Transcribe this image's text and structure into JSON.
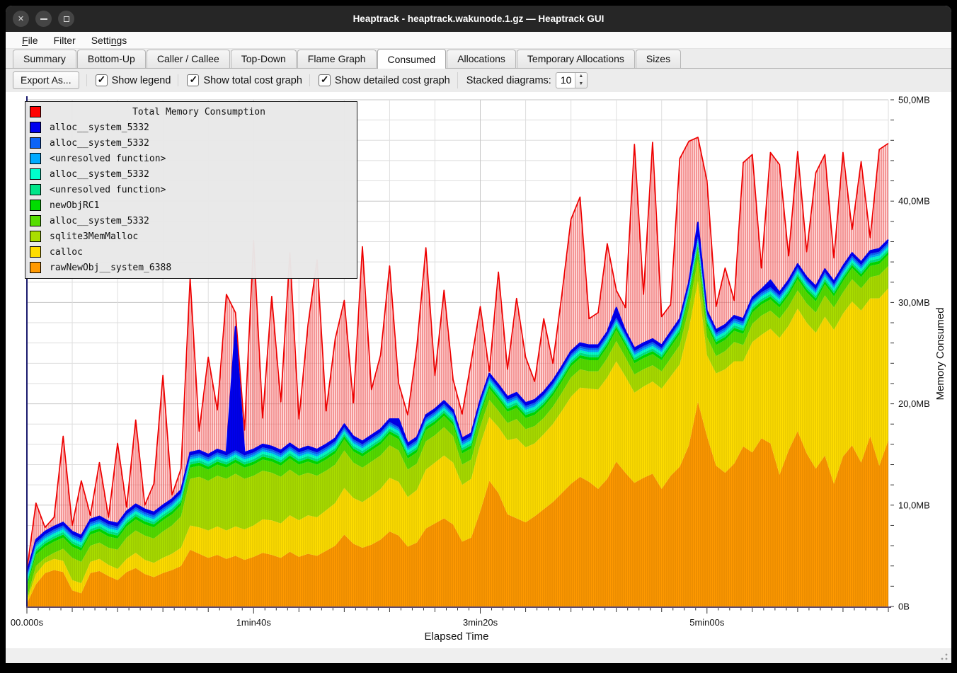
{
  "window": {
    "title": "Heaptrack - heaptrack.wakunode.1.gz — Heaptrack GUI",
    "controls": [
      "close",
      "minimize",
      "maximize"
    ]
  },
  "menu": {
    "items": [
      {
        "label": "File",
        "underline": 0
      },
      {
        "label": "Filter",
        "underline": -1
      },
      {
        "label": "Settings",
        "underline": 5
      }
    ]
  },
  "tabs": {
    "active_index": 5,
    "items": [
      "Summary",
      "Bottom-Up",
      "Caller / Callee",
      "Top-Down",
      "Flame Graph",
      "Consumed",
      "Allocations",
      "Temporary Allocations",
      "Sizes"
    ]
  },
  "toolbar": {
    "export_label": "Export As...",
    "checkboxes": [
      {
        "label": "Show legend",
        "checked": true
      },
      {
        "label": "Show total cost graph",
        "checked": true
      },
      {
        "label": "Show detailed cost graph",
        "checked": true
      }
    ],
    "stacked_label": "Stacked diagrams:",
    "stacked_value": "10"
  },
  "chart_data": {
    "type": "area",
    "stacking": "bottom-to-top",
    "xlabel": "Elapsed Time",
    "ylabel": "Memory Consumed",
    "xlim": [
      0,
      380
    ],
    "ylim": [
      0,
      50
    ],
    "grid": {
      "x_step_s": 20,
      "y_step_mb": 2,
      "visible": true
    },
    "x_start": 0,
    "x_step": 4,
    "x_ticks": [
      {
        "t": 0,
        "label": "00.000s"
      },
      {
        "t": 100,
        "label": "1min40s"
      },
      {
        "t": 200,
        "label": "3min20s"
      },
      {
        "t": 300,
        "label": "5min00s"
      }
    ],
    "y_ticks": [
      {
        "v": 0,
        "label": "0B"
      },
      {
        "v": 10,
        "label": "10,0MB"
      },
      {
        "v": 20,
        "label": "20,0MB"
      },
      {
        "v": 30,
        "label": "30,0MB"
      },
      {
        "v": 40,
        "label": "40,0MB"
      },
      {
        "v": 50,
        "label": "50,0MB"
      }
    ],
    "total": {
      "name": "Total Memory Consumption",
      "color": "#ff0000",
      "values": [
        3.6,
        10.2,
        7.8,
        8.8,
        16.8,
        8.0,
        12.4,
        9.0,
        14.2,
        8.8,
        16.1,
        9.8,
        18.4,
        10.0,
        12.1,
        22.8,
        11.0,
        13.6,
        32.4,
        17.3,
        24.6,
        19.4,
        30.8,
        29.0,
        17.4,
        36.1,
        18.6,
        30.6,
        20.2,
        34.9,
        18.5,
        27.8,
        34.2,
        19.3,
        26.4,
        30.2,
        20.1,
        35.5,
        21.4,
        24.8,
        33.6,
        22.0,
        18.9,
        25.6,
        35.4,
        22.8,
        31.2,
        22.4,
        19.0,
        24.2,
        29.6,
        23.2,
        33.0,
        23.4,
        30.4,
        24.6,
        22.2,
        28.4,
        24.0,
        30.8,
        38.2,
        40.4,
        28.4,
        29.0,
        35.8,
        31.2,
        29.5,
        45.6,
        30.8,
        45.8,
        28.6,
        29.8,
        44.2,
        45.9,
        46.3,
        42.0,
        29.6,
        33.4,
        30.2,
        43.8,
        44.6,
        33.4,
        44.8,
        43.6,
        34.6,
        44.9,
        35.0,
        42.8,
        44.6,
        34.4,
        44.8,
        37.2,
        43.9,
        36.4,
        45.1,
        45.7
      ]
    },
    "series": [
      {
        "name": "rawNewObj__system_6388",
        "color": "#ff9900",
        "values": [
          0.3,
          2.2,
          3.3,
          3.6,
          3.4,
          1.6,
          1.3,
          3.3,
          3.5,
          3.0,
          2.6,
          3.4,
          3.8,
          3.2,
          2.9,
          3.3,
          3.6,
          4.0,
          5.6,
          5.2,
          4.8,
          5.1,
          4.7,
          5.0,
          4.6,
          4.9,
          5.3,
          5.1,
          4.8,
          5.4,
          4.9,
          5.2,
          5.0,
          5.5,
          6.0,
          7.1,
          6.2,
          5.8,
          6.1,
          6.6,
          7.4,
          7.0,
          5.9,
          6.3,
          7.7,
          8.2,
          8.7,
          8.1,
          6.4,
          6.8,
          9.4,
          12.4,
          11.2,
          9.1,
          8.7,
          8.3,
          8.9,
          9.6,
          10.3,
          11.2,
          12.1,
          12.8,
          12.3,
          11.6,
          12.6,
          14.3,
          13.2,
          12.2,
          12.7,
          13.1,
          11.6,
          12.9,
          13.8,
          15.9,
          20.2,
          16.8,
          13.9,
          13.2,
          14.1,
          15.8,
          15.2,
          16.6,
          16.1,
          13.0,
          15.4,
          17.3,
          15.1,
          13.6,
          14.9,
          12.1,
          14.8,
          15.9,
          14.2,
          16.8,
          13.9,
          16.4
        ]
      },
      {
        "name": "calloc",
        "color": "#ffdd00",
        "values": [
          0.3,
          1.0,
          1.0,
          1.1,
          1.1,
          1.0,
          1.0,
          1.1,
          1.2,
          1.1,
          1.1,
          1.3,
          1.5,
          1.4,
          1.4,
          1.5,
          1.6,
          1.8,
          2.4,
          2.6,
          2.7,
          2.8,
          2.8,
          2.9,
          3.0,
          3.1,
          3.3,
          3.4,
          3.4,
          3.6,
          3.6,
          3.8,
          3.8,
          4.0,
          4.2,
          4.6,
          4.5,
          4.5,
          4.8,
          5.0,
          5.3,
          5.3,
          4.9,
          5.2,
          5.8,
          6.0,
          6.2,
          6.1,
          5.6,
          5.8,
          6.6,
          6.3,
          6.5,
          7.3,
          7.9,
          7.4,
          7.2,
          7.4,
          7.7,
          8.1,
          8.6,
          8.8,
          9.2,
          9.8,
          10.0,
          9.9,
          9.5,
          8.9,
          9.0,
          9.1,
          9.9,
          9.8,
          10.1,
          11.5,
          11.9,
          8.0,
          9.1,
          10.2,
          10.1,
          8.4,
          10.9,
          10.2,
          11.3,
          13.5,
          12.3,
          12.1,
          12.9,
          13.4,
          13.7,
          15.2,
          14.1,
          14.2,
          15.0,
          13.6,
          16.5,
          15.0
        ]
      },
      {
        "name": "sqlite3MemMalloc",
        "color": "#aadd00",
        "values": [
          0.2,
          0.8,
          0.5,
          0.6,
          1.2,
          2.2,
          2.1,
          1.6,
          1.6,
          1.7,
          1.9,
          2.1,
          2.2,
          2.4,
          2.4,
          2.6,
          2.8,
          3.1,
          4.6,
          5.0,
          4.9,
          5.0,
          5.1,
          5.2,
          5.0,
          4.9,
          4.8,
          4.7,
          4.6,
          4.5,
          4.4,
          4.2,
          4.1,
          3.9,
          3.8,
          3.7,
          3.5,
          3.4,
          3.4,
          3.3,
          3.2,
          3.1,
          2.7,
          2.6,
          2.8,
          2.7,
          2.8,
          2.6,
          2.0,
          1.9,
          1.8,
          1.7,
          1.6,
          1.7,
          1.9,
          1.8,
          1.7,
          1.6,
          1.7,
          1.8,
          1.9,
          1.8,
          1.7,
          1.8,
          1.9,
          2.0,
          1.9,
          1.8,
          1.7,
          1.6,
          1.7,
          1.8,
          1.9,
          2.0,
          2.1,
          1.8,
          1.7,
          1.8,
          1.9,
          1.6,
          1.8,
          1.9,
          1.8,
          1.9,
          1.9,
          1.8,
          1.9,
          2.0,
          2.1,
          2.2,
          2.1,
          2.2,
          2.2,
          2.1,
          2.3,
          2.2
        ]
      },
      {
        "name": "alloc__system_5332",
        "color": "#55dd00",
        "values": 1.1
      },
      {
        "name": "newObjRC1",
        "color": "#00dd00",
        "values": 0.3
      },
      {
        "name": "<unresolved function>",
        "color": "#00e589",
        "values": 0.25
      },
      {
        "name": "alloc__system_5332",
        "color": "#00ffcc",
        "values": 0.25
      },
      {
        "name": "<unresolved function>",
        "color": "#00aaff",
        "values": 0.2
      },
      {
        "name": "alloc__system_5332",
        "color": "#0b63f6",
        "values": 0.2
      },
      {
        "name": "alloc__system_5332",
        "color": "#0000ee",
        "values": [
          0.3,
          0.3,
          0.3,
          0.3,
          0.3,
          0.3,
          0.3,
          0.3,
          0.3,
          0.3,
          0.3,
          0.3,
          0.3,
          0.3,
          0.3,
          0.3,
          0.3,
          0.3,
          0.3,
          0.3,
          0.3,
          0.3,
          0.3,
          12.2,
          0.3,
          0.3,
          0.3,
          0.3,
          0.3,
          0.3,
          0.3,
          0.3,
          0.3,
          0.3,
          0.3,
          0.3,
          0.3,
          0.3,
          0.3,
          0.3,
          0.3,
          0.8,
          0.3,
          0.3,
          0.3,
          0.3,
          0.3,
          0.3,
          0.3,
          0.3,
          0.3,
          0.3,
          0.3,
          0.3,
          0.3,
          0.3,
          0.3,
          0.3,
          0.3,
          0.3,
          0.3,
          0.3,
          0.3,
          0.3,
          0.3,
          1.0,
          0.3,
          0.3,
          0.3,
          0.3,
          0.3,
          0.3,
          0.3,
          0.3,
          1.4,
          0.3,
          0.3,
          0.3,
          0.3,
          0.3,
          0.3,
          0.3,
          0.7,
          0.3,
          0.3,
          0.3,
          0.3,
          0.3,
          0.3,
          0.3,
          0.3,
          0.3,
          0.3,
          0.3,
          0.3,
          0.3
        ]
      }
    ]
  },
  "statusbar": {
    "text": ""
  }
}
